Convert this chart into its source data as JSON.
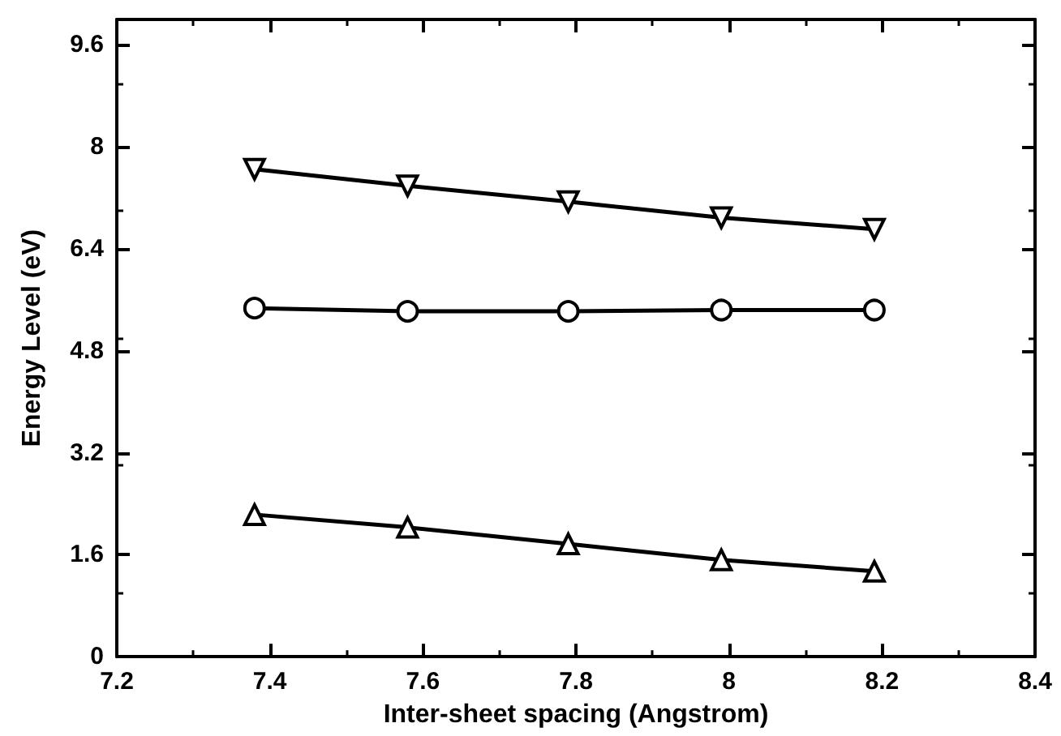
{
  "chart_data": {
    "type": "line",
    "xlabel": "Inter-sheet spacing (Angstrom)",
    "ylabel": "Energy Level (eV)",
    "x": [
      7.38,
      7.58,
      7.79,
      7.99,
      8.19
    ],
    "series": [
      {
        "color": "#000000",
        "marker": "triangle-down",
        "values": [
          7.65,
          7.39,
          7.14,
          6.89,
          6.71
        ]
      },
      {
        "color": "#000000",
        "marker": "circle",
        "values": [
          5.47,
          5.42,
          5.42,
          5.44,
          5.44
        ]
      },
      {
        "color": "#000000",
        "marker": "triangle",
        "values": [
          2.23,
          2.03,
          1.77,
          1.52,
          1.34
        ]
      }
    ],
    "xlim": [
      7.2,
      8.4
    ],
    "xticks": [
      7.2,
      7.4,
      7.6,
      7.8,
      8,
      8.2,
      8.4
    ],
    "ylim": [
      0,
      10
    ],
    "yticks": [
      0,
      1.6,
      3.2,
      4.8,
      6.4,
      8,
      9.6
    ],
    "grid": false,
    "line_style": "solid"
  }
}
